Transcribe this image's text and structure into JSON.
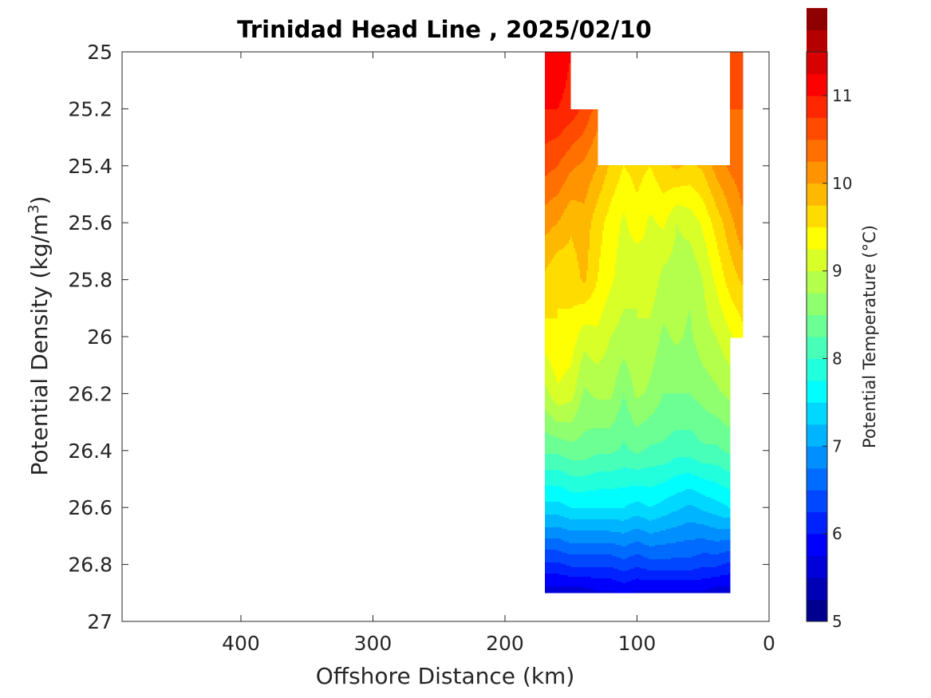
{
  "chart_data": {
    "type": "contour",
    "title": "Trinidad Head Line , 2025/02/10",
    "xlabel": "Offshore Distance (km)",
    "ylabel_main": "Potential Density (kg/m",
    "ylabel_sup": "3",
    "ylabel_end": ")",
    "colorbar_label": "Potential Temperature (°C)",
    "xlim": [
      490,
      0
    ],
    "ylim": [
      25,
      27
    ],
    "x_ticks": [
      400,
      300,
      200,
      100,
      0
    ],
    "x_tick_labels": [
      "400",
      "300",
      "200",
      "100",
      "0"
    ],
    "y_ticks": [
      25,
      25.2,
      25.4,
      25.6,
      25.8,
      26,
      26.2,
      26.4,
      26.6,
      26.8,
      27
    ],
    "y_tick_labels": [
      "25",
      "25.2",
      "25.4",
      "25.6",
      "25.8",
      "26",
      "26.2",
      "26.4",
      "26.6",
      "26.8",
      "27"
    ],
    "colorbar_range": [
      5,
      11.5
    ],
    "colorbar_ticks": [
      5,
      6,
      7,
      8,
      9,
      10,
      11
    ],
    "colorbar_tick_labels": [
      "5",
      "6",
      "7",
      "8",
      "9",
      "10",
      "11"
    ],
    "contour_step": 0.25,
    "colormap": [
      "#00008f",
      "#0000b4",
      "#0000d8",
      "#0000fd",
      "#0022ff",
      "#0047ff",
      "#006bff",
      "#008fff",
      "#00b4ff",
      "#00d8ff",
      "#00fdff",
      "#22ffdc",
      "#47ffb8",
      "#6bff94",
      "#8fff70",
      "#b4ff4b",
      "#d8ff27",
      "#fdff02",
      "#ffdc00",
      "#ffb800",
      "#ff9400",
      "#ff7000",
      "#ff4b00",
      "#ff2700",
      "#fd0000",
      "#d80000",
      "#b40000",
      "#8f0000"
    ],
    "x": [
      170,
      160,
      150,
      140,
      130,
      120,
      110,
      100,
      90,
      80,
      70,
      60,
      50,
      40,
      30,
      20
    ],
    "sections": [
      {
        "y": 25.0,
        "values": [
          11.0,
          11.2,
          11.0,
          null,
          null,
          null,
          null,
          null,
          null,
          null,
          null,
          null,
          null,
          null,
          10.6,
          10.6
        ]
      },
      {
        "y": 25.2,
        "values": [
          11.0,
          11.0,
          10.9,
          10.7,
          10.4,
          null,
          null,
          null,
          null,
          null,
          null,
          null,
          null,
          null,
          10.5,
          10.5
        ]
      },
      {
        "y": 25.4,
        "values": [
          10.6,
          10.5,
          10.3,
          10.2,
          10.0,
          9.7,
          9.5,
          9.6,
          9.5,
          9.7,
          9.8,
          9.7,
          9.8,
          10.1,
          10.3,
          10.4
        ]
      },
      {
        "y": 25.6,
        "values": [
          10.1,
          10.0,
          9.8,
          9.9,
          9.6,
          9.4,
          9.2,
          9.4,
          9.2,
          9.3,
          9.0,
          9.1,
          9.3,
          9.6,
          9.9,
          10.2
        ]
      },
      {
        "y": 25.8,
        "values": [
          9.7,
          9.5,
          9.6,
          9.8,
          9.5,
          9.3,
          9.1,
          9.0,
          9.2,
          8.9,
          8.9,
          8.8,
          9.0,
          9.3,
          9.6,
          9.8
        ]
      },
      {
        "y": 26.0,
        "values": [
          9.4,
          9.5,
          9.4,
          9.1,
          9.2,
          9.0,
          8.9,
          9.0,
          8.9,
          8.7,
          8.8,
          8.7,
          8.9,
          9.0,
          9.2,
          9.4
        ]
      },
      {
        "y": 26.2,
        "values": [
          8.9,
          9.2,
          9.1,
          8.7,
          8.8,
          8.8,
          8.5,
          8.8,
          8.7,
          8.5,
          8.5,
          8.5,
          8.6,
          8.7,
          8.8,
          null
        ]
      },
      {
        "y": 26.4,
        "values": [
          8.3,
          8.3,
          8.4,
          8.4,
          8.3,
          8.3,
          8.2,
          8.3,
          8.2,
          8.2,
          8.1,
          8.1,
          8.2,
          8.2,
          8.3,
          null
        ]
      },
      {
        "y": 26.6,
        "values": [
          7.4,
          7.4,
          7.5,
          7.5,
          7.5,
          7.5,
          7.5,
          7.4,
          7.5,
          7.4,
          7.3,
          7.2,
          7.3,
          7.4,
          7.5,
          null
        ]
      },
      {
        "y": 26.8,
        "values": [
          6.2,
          6.2,
          6.3,
          6.3,
          6.3,
          6.3,
          6.4,
          6.3,
          6.4,
          6.4,
          6.4,
          6.4,
          6.3,
          6.3,
          6.2,
          null
        ]
      },
      {
        "y": 26.9,
        "values": [
          5.6,
          5.6,
          5.6,
          5.6,
          5.7,
          5.7,
          5.8,
          5.7,
          5.7,
          5.7,
          5.7,
          5.7,
          5.7,
          5.6,
          5.6,
          null
        ]
      }
    ]
  }
}
